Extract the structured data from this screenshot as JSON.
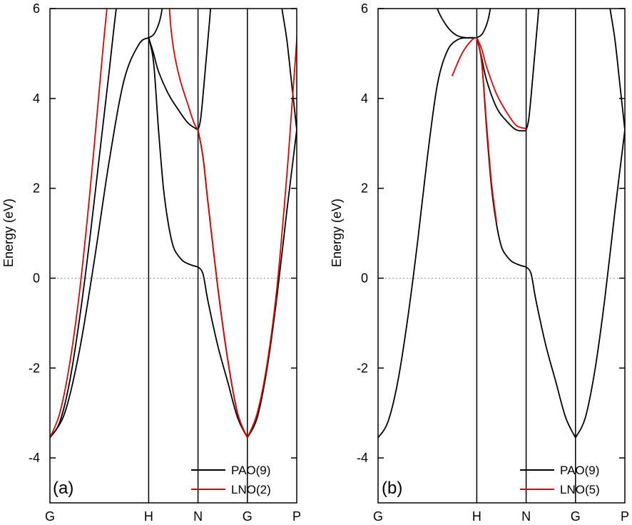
{
  "chart_data": [
    {
      "type": "line",
      "panel_label": "(a)",
      "ylabel": "Energy (eV)",
      "ylim": [
        -5,
        6
      ],
      "yticks": [
        -4,
        -2,
        0,
        2,
        4,
        6
      ],
      "ytick_labels": [
        "-4",
        "-2",
        "0",
        "2",
        "4",
        "6"
      ],
      "x_positions": [
        0,
        1,
        1.5,
        2,
        2.5
      ],
      "xtick_labels": [
        "G",
        "H",
        "N",
        "G",
        "P"
      ],
      "fermi_level": 0,
      "legend_position": "bottom-right",
      "series": [
        {
          "name": "PAO(9)",
          "color": "#000000",
          "bands": [
            [
              [
                0,
                -3.55
              ],
              [
                0.1,
                -3.2
              ],
              [
                0.2,
                -2.3
              ],
              [
                0.3,
                -0.9
              ],
              [
                0.4,
                0.8
              ],
              [
                0.5,
                2.7
              ],
              [
                0.6,
                4.6
              ],
              [
                0.65,
                5.6
              ],
              [
                0.7,
                6.5
              ]
            ],
            [
              [
                0,
                -3.55
              ],
              [
                0.15,
                -3.0
              ],
              [
                0.3,
                -1.6
              ],
              [
                0.45,
                0.4
              ],
              [
                0.6,
                2.6
              ],
              [
                0.75,
                4.4
              ],
              [
                0.9,
                5.2
              ],
              [
                1.0,
                5.35
              ]
            ],
            [
              [
                1.0,
                5.35
              ],
              [
                1.06,
                5.45
              ],
              [
                1.12,
                5.8
              ],
              [
                1.17,
                6.5
              ]
            ],
            [
              [
                1.0,
                5.35
              ],
              [
                1.05,
                4.8
              ],
              [
                1.1,
                3.3
              ],
              [
                1.15,
                2.0
              ],
              [
                1.2,
                1.2
              ],
              [
                1.25,
                0.7
              ],
              [
                1.3,
                0.5
              ],
              [
                1.35,
                0.38
              ],
              [
                1.4,
                0.32
              ],
              [
                1.45,
                0.28
              ],
              [
                1.5,
                0.25
              ]
            ],
            [
              [
                1.0,
                5.35
              ],
              [
                1.05,
                5.0
              ],
              [
                1.1,
                4.6
              ],
              [
                1.2,
                4.1
              ],
              [
                1.3,
                3.75
              ],
              [
                1.4,
                3.45
              ],
              [
                1.5,
                3.3
              ]
            ],
            [
              [
                1.5,
                3.3
              ],
              [
                1.53,
                3.6
              ],
              [
                1.58,
                4.8
              ],
              [
                1.62,
                5.8
              ],
              [
                1.64,
                6.5
              ]
            ],
            [
              [
                1.5,
                0.25
              ],
              [
                1.55,
                0.1
              ],
              [
                1.6,
                -0.5
              ],
              [
                1.7,
                -1.5
              ],
              [
                1.8,
                -2.3
              ],
              [
                1.9,
                -3.1
              ],
              [
                2.0,
                -3.55
              ]
            ],
            [
              [
                1.5,
                3.3
              ],
              [
                1.55,
                2.7
              ],
              [
                1.6,
                1.7
              ],
              [
                1.7,
                -0.2
              ],
              [
                1.8,
                -1.8
              ],
              [
                1.9,
                -3.0
              ],
              [
                2.0,
                -3.55
              ]
            ],
            [
              [
                2.0,
                -3.55
              ],
              [
                2.1,
                -3.1
              ],
              [
                2.2,
                -2.0
              ],
              [
                2.3,
                -0.4
              ],
              [
                2.4,
                1.5
              ],
              [
                2.5,
                3.3
              ]
            ],
            [
              [
                2.5,
                3.3
              ],
              [
                2.45,
                4.3
              ],
              [
                2.4,
                5.3
              ],
              [
                2.35,
                6.0
              ],
              [
                2.32,
                6.5
              ]
            ]
          ]
        },
        {
          "name": "LNO(2)",
          "color": "#e00000",
          "bands": [
            [
              [
                0,
                -3.55
              ],
              [
                0.1,
                -3.0
              ],
              [
                0.2,
                -1.9
              ],
              [
                0.3,
                -0.3
              ],
              [
                0.4,
                1.8
              ],
              [
                0.5,
                4.2
              ],
              [
                0.55,
                5.4
              ],
              [
                0.6,
                6.5
              ]
            ],
            [
              [
                1.2,
                6.5
              ],
              [
                1.22,
                5.7
              ],
              [
                1.26,
                5.0
              ],
              [
                1.32,
                4.4
              ],
              [
                1.4,
                3.85
              ],
              [
                1.46,
                3.45
              ],
              [
                1.5,
                3.3
              ]
            ],
            [
              [
                1.5,
                3.3
              ],
              [
                1.55,
                2.7
              ],
              [
                1.6,
                1.7
              ],
              [
                1.7,
                -0.2
              ],
              [
                1.8,
                -1.8
              ],
              [
                1.9,
                -3.0
              ],
              [
                2.0,
                -3.55
              ]
            ],
            [
              [
                2.0,
                -3.55
              ],
              [
                2.1,
                -3.0
              ],
              [
                2.2,
                -1.9
              ],
              [
                2.3,
                -0.2
              ],
              [
                2.4,
                2.3
              ],
              [
                2.45,
                3.8
              ],
              [
                2.5,
                5.3
              ],
              [
                2.53,
                6.5
              ]
            ]
          ]
        }
      ]
    },
    {
      "type": "line",
      "panel_label": "(b)",
      "ylabel": "Energy (eV)",
      "ylim": [
        -5,
        6
      ],
      "yticks": [
        -4,
        -2,
        0,
        2,
        4,
        6
      ],
      "ytick_labels": [
        "-4",
        "-2",
        "0",
        "2",
        "4",
        "6"
      ],
      "x_positions": [
        0,
        1,
        1.5,
        2,
        2.5
      ],
      "xtick_labels": [
        "G",
        "H",
        "N",
        "G",
        "P"
      ],
      "fermi_level": 0,
      "legend_position": "bottom-right",
      "series": [
        {
          "name": "PAO(9)",
          "color": "#000000",
          "bands": [
            [
              [
                0,
                -3.55
              ],
              [
                0.1,
                -3.2
              ],
              [
                0.2,
                -2.3
              ],
              [
                0.3,
                -0.9
              ],
              [
                0.4,
                0.8
              ],
              [
                0.5,
                2.7
              ],
              [
                0.6,
                4.3
              ],
              [
                0.7,
                5.05
              ],
              [
                0.8,
                5.3
              ],
              [
                0.9,
                5.35
              ],
              [
                1.0,
                5.35
              ]
            ],
            [
              [
                0.55,
                6.5
              ],
              [
                0.6,
                6.0
              ],
              [
                0.7,
                5.6
              ],
              [
                0.8,
                5.4
              ],
              [
                0.9,
                5.35
              ],
              [
                1.0,
                5.35
              ]
            ],
            [
              [
                1.0,
                5.35
              ],
              [
                1.06,
                5.45
              ],
              [
                1.12,
                5.8
              ],
              [
                1.17,
                6.5
              ]
            ],
            [
              [
                1.0,
                5.35
              ],
              [
                1.05,
                4.8
              ],
              [
                1.1,
                3.3
              ],
              [
                1.15,
                2.0
              ],
              [
                1.2,
                1.2
              ],
              [
                1.25,
                0.7
              ],
              [
                1.3,
                0.5
              ],
              [
                1.35,
                0.38
              ],
              [
                1.4,
                0.32
              ],
              [
                1.45,
                0.28
              ],
              [
                1.5,
                0.25
              ]
            ],
            [
              [
                1.0,
                5.35
              ],
              [
                1.05,
                4.9
              ],
              [
                1.1,
                4.4
              ],
              [
                1.2,
                3.8
              ],
              [
                1.3,
                3.5
              ],
              [
                1.4,
                3.3
              ],
              [
                1.5,
                3.28
              ]
            ],
            [
              [
                1.5,
                3.3
              ],
              [
                1.53,
                3.6
              ],
              [
                1.58,
                4.8
              ],
              [
                1.62,
                5.8
              ],
              [
                1.64,
                6.5
              ]
            ],
            [
              [
                1.5,
                0.25
              ],
              [
                1.55,
                0.1
              ],
              [
                1.6,
                -0.5
              ],
              [
                1.7,
                -1.5
              ],
              [
                1.8,
                -2.3
              ],
              [
                1.9,
                -3.1
              ],
              [
                2.0,
                -3.55
              ]
            ],
            [
              [
                2.0,
                -3.55
              ],
              [
                2.1,
                -3.1
              ],
              [
                2.2,
                -2.0
              ],
              [
                2.3,
                -0.4
              ],
              [
                2.4,
                1.5
              ],
              [
                2.5,
                3.3
              ]
            ],
            [
              [
                2.5,
                3.3
              ],
              [
                2.45,
                4.3
              ],
              [
                2.4,
                5.3
              ],
              [
                2.35,
                6.0
              ],
              [
                2.32,
                6.5
              ]
            ]
          ]
        },
        {
          "name": "LNO(5)",
          "color": "#e00000",
          "bands": [
            [
              [
                0.75,
                4.5
              ],
              [
                0.85,
                5.0
              ],
              [
                0.95,
                5.3
              ],
              [
                1.0,
                5.35
              ]
            ],
            [
              [
                1.0,
                5.35
              ],
              [
                1.05,
                4.8
              ],
              [
                1.1,
                3.4
              ],
              [
                1.15,
                2.1
              ],
              [
                1.2,
                1.25
              ]
            ],
            [
              [
                1.0,
                5.35
              ],
              [
                1.05,
                5.1
              ],
              [
                1.1,
                4.7
              ],
              [
                1.2,
                4.1
              ],
              [
                1.3,
                3.7
              ],
              [
                1.4,
                3.4
              ],
              [
                1.5,
                3.33
              ]
            ]
          ]
        }
      ]
    }
  ]
}
